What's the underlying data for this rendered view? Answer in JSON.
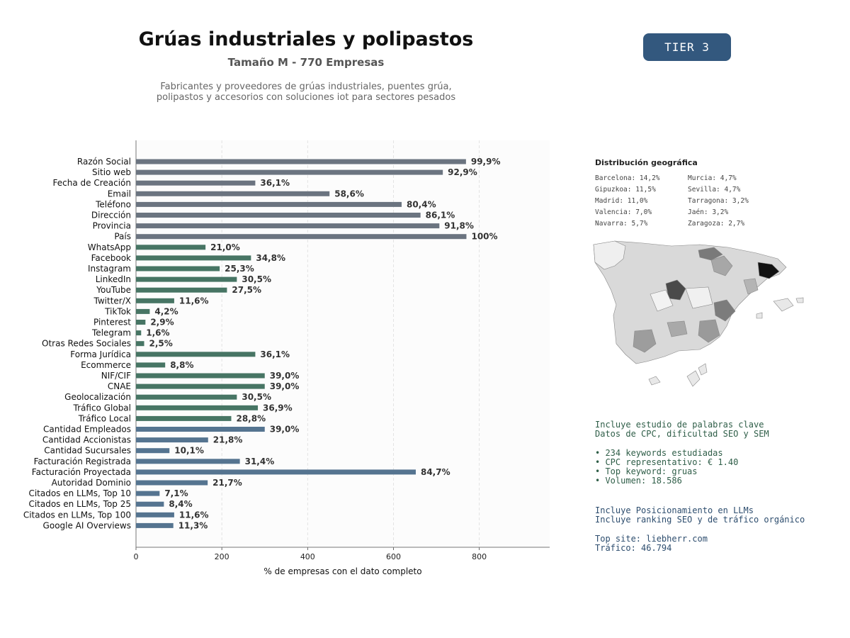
{
  "header": {
    "title": "Grúas industriales y polipastos",
    "subtitle": "Tamaño M - 770 Empresas",
    "description_line1": "Fabricantes y proveedores de grúas industriales, puentes grúa,",
    "description_line2": "polipastos y accesorios con soluciones iot para sectores pesados",
    "tier_badge": "TIER 3",
    "tier_color": "#33587e"
  },
  "chart_data": {
    "type": "bar",
    "orientation": "horizontal",
    "xlabel": "% de empresas con el dato completo",
    "xlim": [
      0,
      964
    ],
    "xticks": [
      0,
      200,
      400,
      600,
      800
    ],
    "grid": "vertical dashed",
    "categories": [
      "Razón Social",
      "Sitio web",
      "Fecha de Creación",
      "Email",
      "Teléfono",
      "Dirección",
      "Provincia",
      "País",
      "WhatsApp",
      "Facebook",
      "Instagram",
      "LinkedIn",
      "YouTube",
      "Twitter/X",
      "TikTok",
      "Pinterest",
      "Telegram",
      "Otras Redes Sociales",
      "Forma Jurídica",
      "Ecommerce",
      "NIF/CIF",
      "CNAE",
      "Geolocalización",
      "Tráfico Global",
      "Tráfico Local",
      "Cantidad Empleados",
      "Cantidad Accionistas",
      "Cantidad Sucursales",
      "Facturación Registrada",
      "Facturación Proyectada",
      "Autoridad Dominio",
      "Citados en LLMs, Top 10",
      "Citados en LLMs, Top 25",
      "Citados en LLMs, Top 100",
      "Google AI Overviews"
    ],
    "values": [
      769,
      715,
      278,
      451,
      619,
      663,
      707,
      770,
      162,
      268,
      195,
      235,
      212,
      89,
      32,
      22,
      12,
      19,
      278,
      68,
      300,
      300,
      235,
      284,
      222,
      300,
      168,
      78,
      242,
      652,
      167,
      55,
      65,
      89,
      87
    ],
    "labels": [
      "99,9%",
      "92,9%",
      "36,1%",
      "58,6%",
      "80,4%",
      "86,1%",
      "91,8%",
      "100%",
      "21,0%",
      "34,8%",
      "25,3%",
      "30,5%",
      "27,5%",
      "11,6%",
      "4,2%",
      "2,9%",
      "1,6%",
      "2,5%",
      "36,1%",
      "8,8%",
      "39,0%",
      "39,0%",
      "30,5%",
      "36,9%",
      "28,8%",
      "39,0%",
      "21,8%",
      "10,1%",
      "31,4%",
      "84,7%",
      "21,7%",
      "7,1%",
      "8,4%",
      "11,6%",
      "11,3%"
    ],
    "groups": [
      "basic",
      "basic",
      "basic",
      "basic",
      "basic",
      "basic",
      "basic",
      "basic",
      "digital",
      "digital",
      "digital",
      "digital",
      "digital",
      "digital",
      "digital",
      "digital",
      "digital",
      "digital",
      "digital",
      "digital",
      "digital",
      "digital",
      "digital",
      "digital",
      "digital",
      "business",
      "business",
      "business",
      "business",
      "business",
      "business",
      "business",
      "business",
      "business",
      "business"
    ],
    "colors": {
      "basic": "#6b7480",
      "digital": "#477564",
      "business": "#557490"
    }
  },
  "geo": {
    "title": "Distribución geográfica",
    "items": [
      "Barcelona: 14,2%",
      "Murcia: 4,7%",
      "Gipuzkoa: 11,5%",
      "Sevilla: 4,7%",
      "Madrid: 11,0%",
      "Tarragona: 3,2%",
      "Valencia: 7,0%",
      "Jaén: 3,2%",
      "Navarra: 5,7%",
      "Zaragoza: 2,7%"
    ]
  },
  "info": {
    "keywords_block": "Incluye estudio de palabras clave\nDatos de CPC, dificultad SEO y SEM\n\n• 234 keywords estudiadas\n• CPC representativo: € 1.40\n• Top keyword: gruas\n• Volumen: 18.586",
    "llm_block": "Incluye Posicionamiento en LLMs\nIncluye ranking SEO y de tráfico orgánico\n\nTop site: liebherr.com\nTráfico: 46.794"
  }
}
